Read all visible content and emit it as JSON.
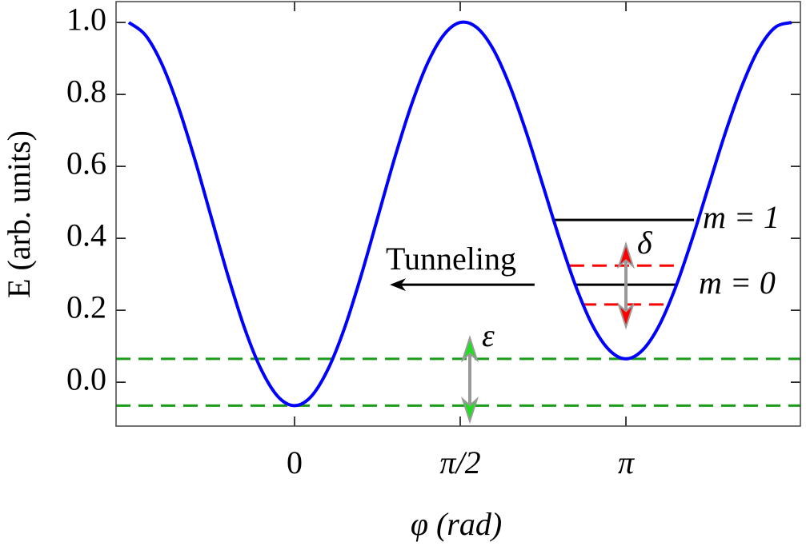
{
  "chart_data": {
    "type": "line",
    "x_label": "φ (rad)",
    "y_label": "E (arb. units)",
    "x": [
      -1.571,
      -1.414,
      -1.257,
      -1.1,
      -0.942,
      -0.785,
      -0.628,
      -0.471,
      -0.314,
      -0.157,
      0,
      0.157,
      0.314,
      0.471,
      0.628,
      0.785,
      0.942,
      1.1,
      1.257,
      1.414,
      1.571,
      1.728,
      1.885,
      2.042,
      2.199,
      2.356,
      2.513,
      2.67,
      2.827,
      2.985,
      3.142,
      3.299,
      3.456,
      3.613,
      3.77,
      3.927,
      4.084,
      4.241,
      4.398,
      4.555,
      4.712
    ],
    "values": [
      1.0,
      0.965,
      0.884,
      0.764,
      0.616,
      0.454,
      0.293,
      0.148,
      0.034,
      -0.04,
      -0.065,
      -0.04,
      0.034,
      0.148,
      0.293,
      0.454,
      0.616,
      0.764,
      0.884,
      0.965,
      1.0,
      0.986,
      0.925,
      0.823,
      0.693,
      0.546,
      0.398,
      0.264,
      0.157,
      0.089,
      0.065,
      0.089,
      0.157,
      0.264,
      0.398,
      0.546,
      0.693,
      0.823,
      0.925,
      0.986,
      1.0
    ],
    "color": "#0000ff",
    "xlim": [
      -1.692,
      4.796
    ],
    "ylim": [
      -0.122,
      1.058
    ],
    "xticks": [
      0,
      {
        "value": 1.571,
        "label": "π/2"
      },
      {
        "value": 3.142,
        "label": "π"
      }
    ],
    "yticks": [
      {
        "value": 0,
        "label": "0.0"
      },
      0.2,
      0.4,
      0.6,
      0.8,
      {
        "value": 1,
        "label": "1.0"
      }
    ],
    "hlines": [
      {
        "y": 0.065,
        "x": [
          -1.692,
          4.796
        ],
        "color": "#1a9c1a",
        "style": "dashed"
      },
      {
        "y": -0.065,
        "x": [
          -1.692,
          4.796
        ],
        "color": "#1a9c1a",
        "style": "dashed"
      },
      {
        "y": 0.451,
        "x": [
          2.459,
          3.787
        ],
        "color": "#000000",
        "style": "solid"
      },
      {
        "y": 0.324,
        "x": [
          2.61,
          3.696
        ],
        "color": "#ff0000",
        "style": "dashed"
      },
      {
        "y": 0.271,
        "x": [
          2.648,
          3.62
        ],
        "color": "#000000",
        "style": "solid"
      },
      {
        "y": 0.216,
        "x": [
          2.724,
          3.544
        ],
        "color": "#ff0000",
        "style": "dashed"
      }
    ],
    "arrows": [
      {
        "x": [
          2.276,
          0.904
        ],
        "y": [
          0.271,
          0.271
        ],
        "color": "#000000"
      }
    ],
    "double_arrows": [
      {
        "x": 3.142,
        "y": [
          0.153,
          0.384
        ],
        "color": "#ff0000"
      },
      {
        "x": 1.662,
        "y": [
          -0.109,
          0.124
        ],
        "color": "#22dd22"
      }
    ],
    "annotations": [
      "m = 1",
      "m = 0",
      "δ",
      "ε",
      "Tunneling"
    ]
  }
}
